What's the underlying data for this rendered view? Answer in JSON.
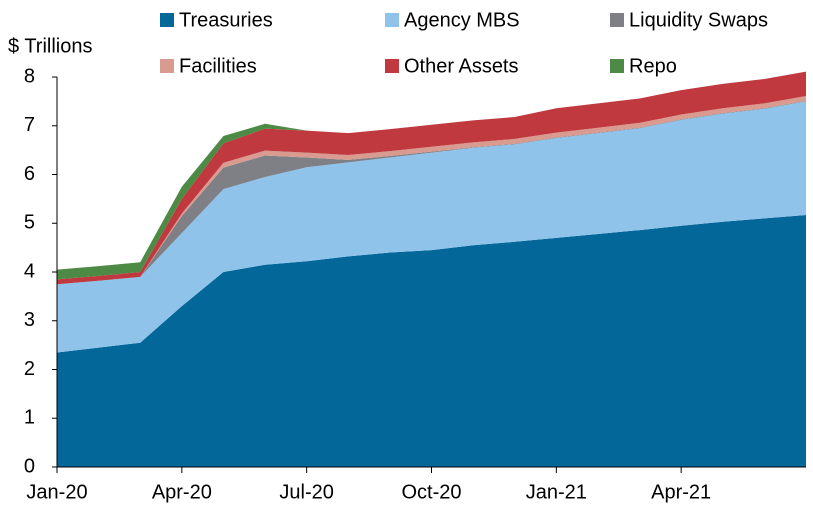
{
  "chart_data": {
    "type": "stacked_area",
    "y_label": "$ Trillions",
    "categories": [
      "Jan-20",
      null,
      null,
      "Apr-20",
      null,
      null,
      "Jul-20",
      null,
      null,
      "Oct-20",
      null,
      null,
      "Jan-21",
      null,
      null,
      "Apr-21",
      null,
      null,
      null
    ],
    "series": [
      {
        "name": "Treasuries",
        "color": "#03679a",
        "values": [
          2.35,
          2.45,
          2.55,
          3.3,
          4.0,
          4.15,
          4.22,
          4.32,
          4.4,
          4.45,
          4.55,
          4.62,
          4.7,
          4.78,
          4.86,
          4.95,
          5.03,
          5.1,
          5.17
        ]
      },
      {
        "name": "Agency MBS",
        "color": "#8fc3ea",
        "values": [
          1.4,
          1.37,
          1.35,
          1.5,
          1.7,
          1.8,
          1.93,
          1.93,
          1.95,
          2.0,
          2.0,
          2.0,
          2.05,
          2.07,
          2.09,
          2.17,
          2.22,
          2.25,
          2.33
        ]
      },
      {
        "name": "Liquidity Swaps",
        "color": "#7f7f86",
        "values": [
          0,
          0,
          0,
          0.35,
          0.44,
          0.44,
          0.2,
          0.05,
          0.03,
          0.02,
          0.01,
          0.01,
          0.01,
          0.01,
          0.01,
          0.01,
          0.01,
          0.01,
          0.01
        ]
      },
      {
        "name": "Facilities",
        "color": "#d99a90",
        "values": [
          0,
          0,
          0,
          0.05,
          0.1,
          0.1,
          0.1,
          0.1,
          0.1,
          0.1,
          0.1,
          0.1,
          0.1,
          0.1,
          0.1,
          0.1,
          0.1,
          0.1,
          0.1
        ]
      },
      {
        "name": "Other Assets",
        "color": "#c0393f",
        "values": [
          0.1,
          0.1,
          0.1,
          0.3,
          0.4,
          0.45,
          0.45,
          0.45,
          0.45,
          0.45,
          0.45,
          0.45,
          0.5,
          0.5,
          0.5,
          0.5,
          0.5,
          0.5,
          0.5
        ]
      },
      {
        "name": "Repo",
        "color": "#4d8a45",
        "values": [
          0.2,
          0.2,
          0.2,
          0.25,
          0.15,
          0.1,
          0,
          0,
          0,
          0,
          0,
          0,
          0,
          0,
          0,
          0,
          0,
          0,
          0
        ]
      }
    ],
    "ylim": [
      0,
      8
    ],
    "yticks": [
      0,
      1,
      2,
      3,
      4,
      5,
      6,
      7,
      8
    ],
    "grid": false
  }
}
